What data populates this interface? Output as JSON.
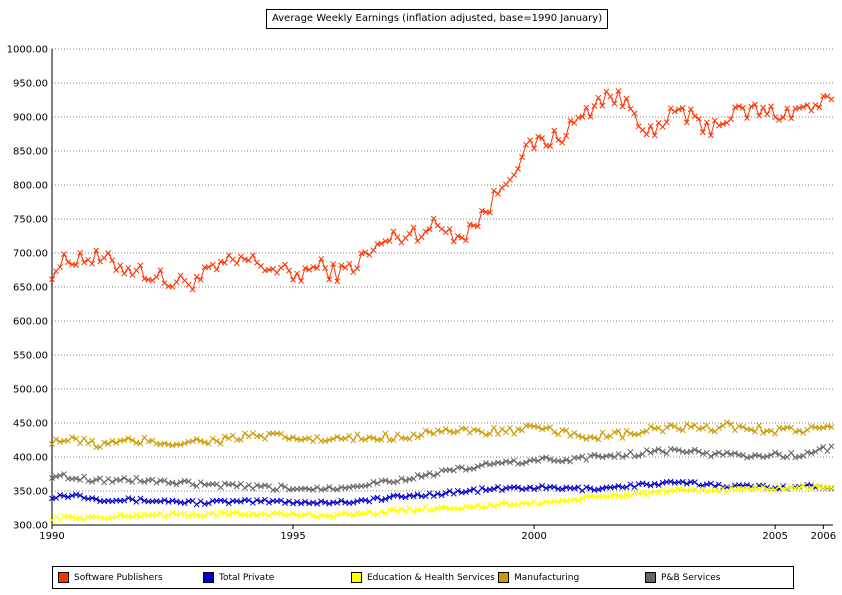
{
  "chart_data": {
    "type": "line",
    "title": "Average Weekly Earnings (inflation adjusted, base=1990 January)",
    "xlabel": "",
    "ylabel": "",
    "xlim": [
      1990,
      2006.2
    ],
    "ylim": [
      300,
      1000
    ],
    "grid": true,
    "legend_position": "bottom",
    "y_ticks": [
      "300.00",
      "350.00",
      "400.00",
      "450.00",
      "500.00",
      "550.00",
      "600.00",
      "650.00",
      "700.00",
      "750.00",
      "800.00",
      "850.00",
      "900.00",
      "950.00",
      "1000.00"
    ],
    "x_ticks": [
      "1990",
      "1995",
      "2000",
      "2005",
      "2006"
    ],
    "series": [
      {
        "name": "Software Publishers",
        "color": "#ff3300",
        "x": [
          1990,
          1990.5,
          1991,
          1991.5,
          1992,
          1992.5,
          1993,
          1993.5,
          1994,
          1994.5,
          1995,
          1995.5,
          1996,
          1996.5,
          1997,
          1997.5,
          1998,
          1998.5,
          1999,
          1999.5,
          2000,
          2000.5,
          2001,
          2001.5,
          2002,
          2002.5,
          2003,
          2003.5,
          2004,
          2004.5,
          2005,
          2005.5,
          2006
        ],
        "values": [
          675,
          695,
          690,
          680,
          670,
          655,
          660,
          680,
          690,
          680,
          665,
          680,
          670,
          695,
          720,
          730,
          740,
          725,
          760,
          820,
          860,
          870,
          900,
          935,
          915,
          870,
          915,
          880,
          900,
          910,
          905,
          910,
          920
        ]
      },
      {
        "name": "Total Private",
        "color": "#0000cc",
        "x": [
          1990,
          1990.5,
          1991,
          1991.5,
          1992,
          1992.5,
          1993,
          1993.5,
          1994,
          1994.5,
          1995,
          1995.5,
          1996,
          1996.5,
          1997,
          1997.5,
          1998,
          1998.5,
          1999,
          1999.5,
          2000,
          2000.5,
          2001,
          2001.5,
          2002,
          2002.5,
          2003,
          2003.5,
          2004,
          2004.5,
          2005,
          2005.5,
          2006
        ],
        "values": [
          342,
          344,
          338,
          337,
          336,
          335,
          333,
          334,
          334,
          335,
          334,
          333,
          334,
          336,
          340,
          343,
          346,
          349,
          352,
          354,
          355,
          354,
          353,
          355,
          358,
          360,
          362,
          360,
          358,
          356,
          356,
          356,
          357
        ]
      },
      {
        "name": "Education & Health Services",
        "color": "#ffff00",
        "x": [
          1990,
          1990.5,
          1991,
          1991.5,
          1992,
          1992.5,
          1993,
          1993.5,
          1994,
          1994.5,
          1995,
          1995.5,
          1996,
          1996.5,
          1997,
          1997.5,
          1998,
          1998.5,
          1999,
          1999.5,
          2000,
          2000.5,
          2001,
          2001.5,
          2002,
          2002.5,
          2003,
          2003.5,
          2004,
          2004.5,
          2005,
          2005.5,
          2006
        ],
        "values": [
          310,
          311,
          310,
          313,
          315,
          315,
          315,
          316,
          316,
          316,
          315,
          314,
          315,
          317,
          320,
          323,
          325,
          326,
          328,
          330,
          332,
          335,
          338,
          342,
          345,
          348,
          350,
          350,
          352,
          353,
          354,
          355,
          356
        ]
      },
      {
        "name": "Manufacturing",
        "color": "#cc9900",
        "x": [
          1990,
          1990.5,
          1991,
          1991.5,
          1992,
          1992.5,
          1993,
          1993.5,
          1994,
          1994.5,
          1995,
          1995.5,
          1996,
          1996.5,
          1997,
          1997.5,
          1998,
          1998.5,
          1999,
          1999.5,
          2000,
          2000.5,
          2001,
          2001.5,
          2002,
          2002.5,
          2003,
          2003.5,
          2004,
          2004.5,
          2005,
          2005.5,
          2006
        ],
        "values": [
          425,
          424,
          418,
          422,
          424,
          420,
          423,
          425,
          430,
          430,
          428,
          425,
          426,
          428,
          430,
          432,
          440,
          436,
          438,
          438,
          442,
          436,
          432,
          430,
          434,
          440,
          444,
          440,
          446,
          442,
          440,
          440,
          442
        ]
      },
      {
        "name": "P&B Services",
        "color": "#666666",
        "x": [
          1990,
          1990.5,
          1991,
          1991.5,
          1992,
          1992.5,
          1993,
          1993.5,
          1994,
          1994.5,
          1995,
          1995.5,
          1996,
          1996.5,
          1997,
          1997.5,
          1998,
          1998.5,
          1999,
          1999.5,
          2000,
          2000.5,
          2001,
          2001.5,
          2002,
          2002.5,
          2003,
          2003.5,
          2004,
          2004.5,
          2005,
          2005.5,
          2006
        ],
        "values": [
          373,
          370,
          366,
          366,
          366,
          362,
          360,
          358,
          356,
          355,
          354,
          354,
          356,
          360,
          365,
          370,
          376,
          382,
          388,
          392,
          395,
          396,
          398,
          402,
          404,
          408,
          410,
          405,
          404,
          402,
          403,
          402,
          412
        ]
      }
    ]
  }
}
